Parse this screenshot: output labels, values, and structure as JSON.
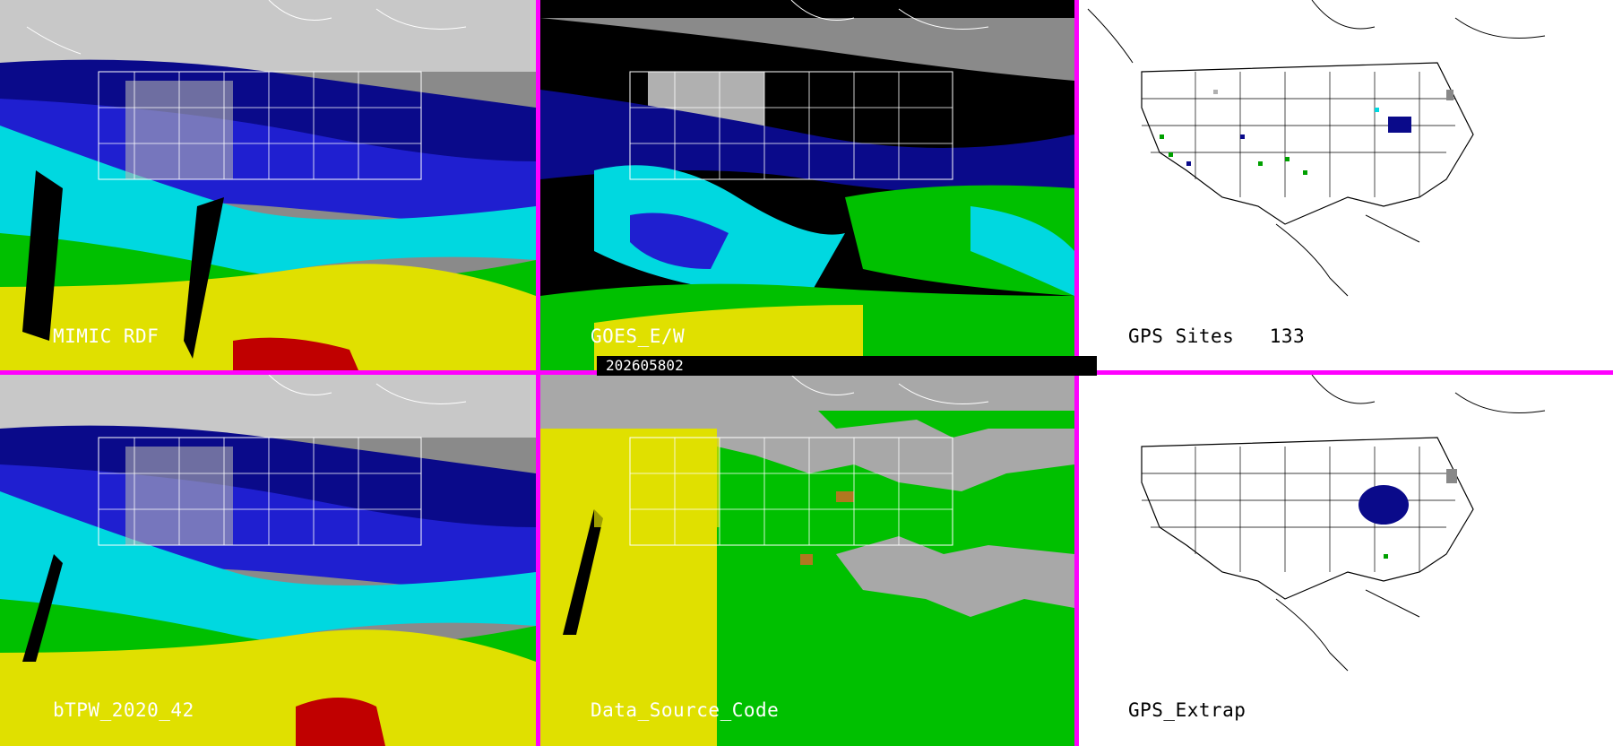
{
  "timestamp": "202605802",
  "panels": [
    {
      "id": "mimic",
      "label": "MIMIC RDF"
    },
    {
      "id": "goes",
      "label": "GOES_E/W"
    },
    {
      "id": "gps-sites",
      "label": "GPS Sites   133"
    },
    {
      "id": "btpw",
      "label": "bTPW_2020_42"
    },
    {
      "id": "dsc",
      "label": "Data_Source_Code"
    },
    {
      "id": "gps-extrap",
      "label": "GPS_Extrap"
    }
  ],
  "colors": {
    "divider": "#ff00ff",
    "tpw_scale": [
      "#b0b0b0",
      "#0a0a8a",
      "#1f1fd0",
      "#00d8e0",
      "#00c000",
      "#e0e000",
      "#e0a000",
      "#c00000"
    ],
    "data_source": {
      "gray": "#a8a8a8",
      "yellow": "#e0e000",
      "green": "#00c000",
      "brown": "#b07820"
    }
  }
}
